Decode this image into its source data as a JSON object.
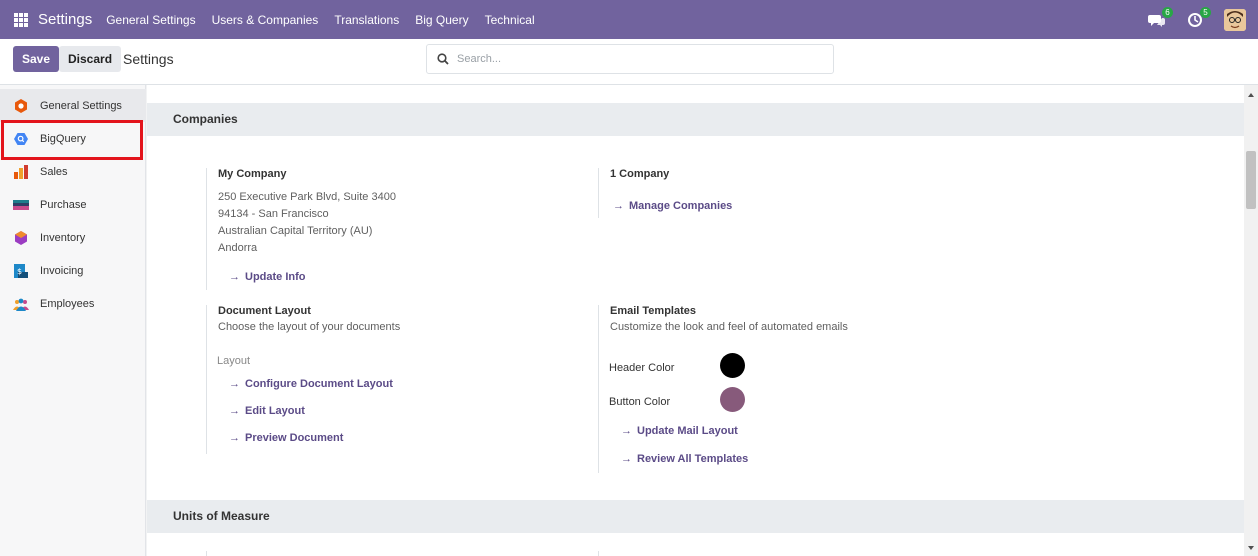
{
  "navbar": {
    "brand": "Settings",
    "menu": [
      "General Settings",
      "Users & Companies",
      "Translations",
      "Big Query",
      "Technical"
    ],
    "messages_count": "6",
    "activities_count": "5",
    "color": "#71639e"
  },
  "control_panel": {
    "save_label": "Save",
    "discard_label": "Discard",
    "title": "Settings",
    "search_placeholder": "Search..."
  },
  "sidebar": {
    "items": [
      {
        "label": "General Settings",
        "icon": "general-settings-icon"
      },
      {
        "label": "BigQuery",
        "icon": "bigquery-icon"
      },
      {
        "label": "Sales",
        "icon": "sales-icon"
      },
      {
        "label": "Purchase",
        "icon": "purchase-icon"
      },
      {
        "label": "Inventory",
        "icon": "inventory-icon"
      },
      {
        "label": "Invoicing",
        "icon": "invoicing-icon"
      },
      {
        "label": "Employees",
        "icon": "employees-icon"
      }
    ]
  },
  "companies": {
    "section_title": "Companies",
    "my_company": {
      "title": "My Company",
      "address": [
        "250 Executive Park Blvd, Suite 3400",
        "94134 - San Francisco",
        "Australian Capital Territory (AU)",
        "Andorra"
      ],
      "update_link": "Update Info"
    },
    "count": {
      "title": "1 Company",
      "manage_link": "Manage Companies"
    },
    "document_layout": {
      "title": "Document Layout",
      "description": "Choose the layout of your documents",
      "layout_label": "Layout",
      "configure_link": "Configure Document Layout",
      "edit_link": "Edit Layout",
      "preview_link": "Preview Document"
    },
    "email_templates": {
      "title": "Email Templates",
      "description": "Customize the look and feel of automated emails",
      "header_color_label": "Header Color",
      "header_color": "#000000",
      "button_color_label": "Button Color",
      "button_color": "#875a7b",
      "update_link": "Update Mail Layout",
      "review_link": "Review All Templates"
    }
  },
  "units": {
    "section_title": "Units of Measure"
  }
}
